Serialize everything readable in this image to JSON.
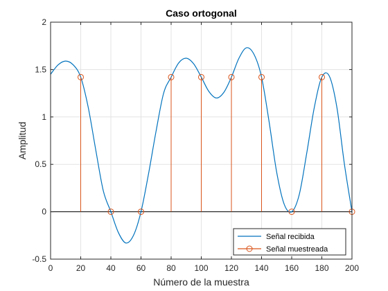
{
  "chart_data": {
    "type": "line",
    "title": "Caso ortogonal",
    "xlabel": "Número de la muestra",
    "ylabel": "Amplitud",
    "xlim": [
      0,
      200
    ],
    "ylim": [
      -0.5,
      2
    ],
    "xticks": [
      0,
      20,
      40,
      60,
      80,
      100,
      120,
      140,
      160,
      180,
      200
    ],
    "yticks": [
      -0.5,
      0,
      0.5,
      1,
      1.5,
      2
    ],
    "xtick_labels": [
      "0",
      "20",
      "40",
      "60",
      "80",
      "100",
      "120",
      "140",
      "160",
      "180",
      "200"
    ],
    "ytick_labels": [
      "-0.5",
      "0",
      "0.5",
      "1",
      "1.5",
      "2"
    ],
    "grid": true,
    "legend_position": "bottom-right",
    "series": [
      {
        "name": "Señal recibida",
        "style": "line",
        "color": "#0072BD",
        "x": [
          0,
          5,
          10,
          15,
          20,
          25,
          30,
          35,
          40,
          45,
          50,
          55,
          60,
          65,
          70,
          75,
          80,
          85,
          90,
          95,
          100,
          105,
          110,
          115,
          120,
          125,
          130,
          135,
          140,
          145,
          150,
          155,
          160,
          165,
          170,
          175,
          180,
          185,
          190,
          195,
          200
        ],
        "y": [
          1.45,
          1.55,
          1.59,
          1.55,
          1.42,
          1.1,
          0.65,
          0.22,
          0.0,
          -0.22,
          -0.33,
          -0.25,
          0.0,
          0.4,
          0.85,
          1.25,
          1.42,
          1.57,
          1.62,
          1.56,
          1.42,
          1.27,
          1.2,
          1.26,
          1.42,
          1.62,
          1.73,
          1.66,
          1.42,
          0.95,
          0.42,
          0.08,
          0.0,
          0.18,
          0.62,
          1.1,
          1.42,
          1.43,
          1.1,
          0.5,
          0.0
        ]
      },
      {
        "name": "Señal muestreada",
        "style": "stem",
        "color": "#D95319",
        "x": [
          20,
          40,
          60,
          80,
          100,
          120,
          140,
          160,
          180,
          200
        ],
        "y": [
          1.42,
          0,
          0,
          1.42,
          1.42,
          1.42,
          1.42,
          0,
          1.42,
          0
        ]
      }
    ]
  }
}
